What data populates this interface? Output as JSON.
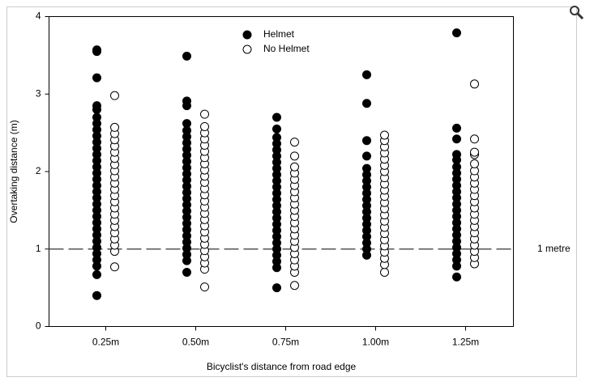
{
  "chart_data": {
    "type": "strip",
    "xlabel": "Bicyclist's distance from road edge",
    "ylabel": "Overtaking distance (m)",
    "categories": [
      "0.25m",
      "0.50m",
      "0.75m",
      "1.00m",
      "1.25m"
    ],
    "ylim": [
      0,
      4
    ],
    "yticks": [
      0,
      1,
      2,
      3,
      4
    ],
    "legend": "top-center",
    "hline": {
      "value": 1,
      "label": "1 metre"
    },
    "series": [
      {
        "name": "Helmet",
        "color": "#000000",
        "values": [
          [
            0.4,
            0.67,
            0.78,
            0.86,
            0.94,
            1.02,
            1.1,
            1.18,
            1.26,
            1.34,
            1.42,
            1.5,
            1.58,
            1.66,
            1.74,
            1.82,
            1.9,
            1.98,
            2.06,
            2.14,
            2.22,
            2.3,
            2.38,
            2.46,
            2.54,
            2.62,
            2.7,
            2.8,
            2.85,
            3.21,
            3.55,
            3.57
          ],
          [
            0.7,
            0.85,
            0.93,
            1.01,
            1.09,
            1.17,
            1.25,
            1.33,
            1.41,
            1.49,
            1.57,
            1.65,
            1.73,
            1.81,
            1.89,
            1.97,
            2.05,
            2.13,
            2.21,
            2.29,
            2.37,
            2.45,
            2.53,
            2.62,
            2.85,
            2.91,
            3.49
          ],
          [
            0.5,
            0.76,
            0.84,
            0.92,
            1.0,
            1.08,
            1.16,
            1.24,
            1.32,
            1.4,
            1.48,
            1.56,
            1.64,
            1.72,
            1.8,
            1.88,
            1.96,
            2.04,
            2.12,
            2.2,
            2.28,
            2.36,
            2.44,
            2.55,
            2.7
          ],
          [
            0.92,
            1.0,
            1.08,
            1.16,
            1.24,
            1.32,
            1.4,
            1.48,
            1.56,
            1.64,
            1.72,
            1.8,
            1.88,
            1.96,
            2.04,
            2.2,
            2.4,
            2.88,
            3.25
          ],
          [
            0.64,
            0.78,
            0.86,
            0.94,
            1.02,
            1.1,
            1.18,
            1.26,
            1.34,
            1.42,
            1.5,
            1.58,
            1.66,
            1.74,
            1.82,
            1.9,
            1.98,
            2.06,
            2.15,
            2.22,
            2.42,
            2.56,
            3.79
          ]
        ]
      },
      {
        "name": "No Helmet",
        "color": "#ffffff",
        "values": [
          [
            0.77,
            0.97,
            1.05,
            1.13,
            1.21,
            1.29,
            1.37,
            1.45,
            1.53,
            1.61,
            1.69,
            1.77,
            1.85,
            1.93,
            2.01,
            2.09,
            2.17,
            2.25,
            2.33,
            2.41,
            2.49,
            2.57,
            2.98
          ],
          [
            0.51,
            0.74,
            0.82,
            0.9,
            0.98,
            1.06,
            1.14,
            1.22,
            1.3,
            1.38,
            1.46,
            1.54,
            1.62,
            1.7,
            1.78,
            1.86,
            1.94,
            2.02,
            2.1,
            2.18,
            2.26,
            2.34,
            2.42,
            2.5,
            2.58,
            2.74
          ],
          [
            0.53,
            0.7,
            0.78,
            0.86,
            0.94,
            1.02,
            1.1,
            1.18,
            1.26,
            1.34,
            1.42,
            1.5,
            1.58,
            1.66,
            1.74,
            1.82,
            1.9,
            1.98,
            2.06,
            2.2,
            2.38
          ],
          [
            0.7,
            0.8,
            0.88,
            0.96,
            1.04,
            1.12,
            1.2,
            1.28,
            1.36,
            1.44,
            1.52,
            1.6,
            1.68,
            1.76,
            1.84,
            1.92,
            2.0,
            2.08,
            2.16,
            2.24,
            2.32,
            2.4,
            2.47
          ],
          [
            0.81,
            0.89,
            0.97,
            1.05,
            1.13,
            1.21,
            1.29,
            1.37,
            1.45,
            1.53,
            1.61,
            1.69,
            1.77,
            1.85,
            1.93,
            2.01,
            2.1,
            2.22,
            2.25,
            2.42,
            3.13
          ]
        ]
      }
    ]
  }
}
